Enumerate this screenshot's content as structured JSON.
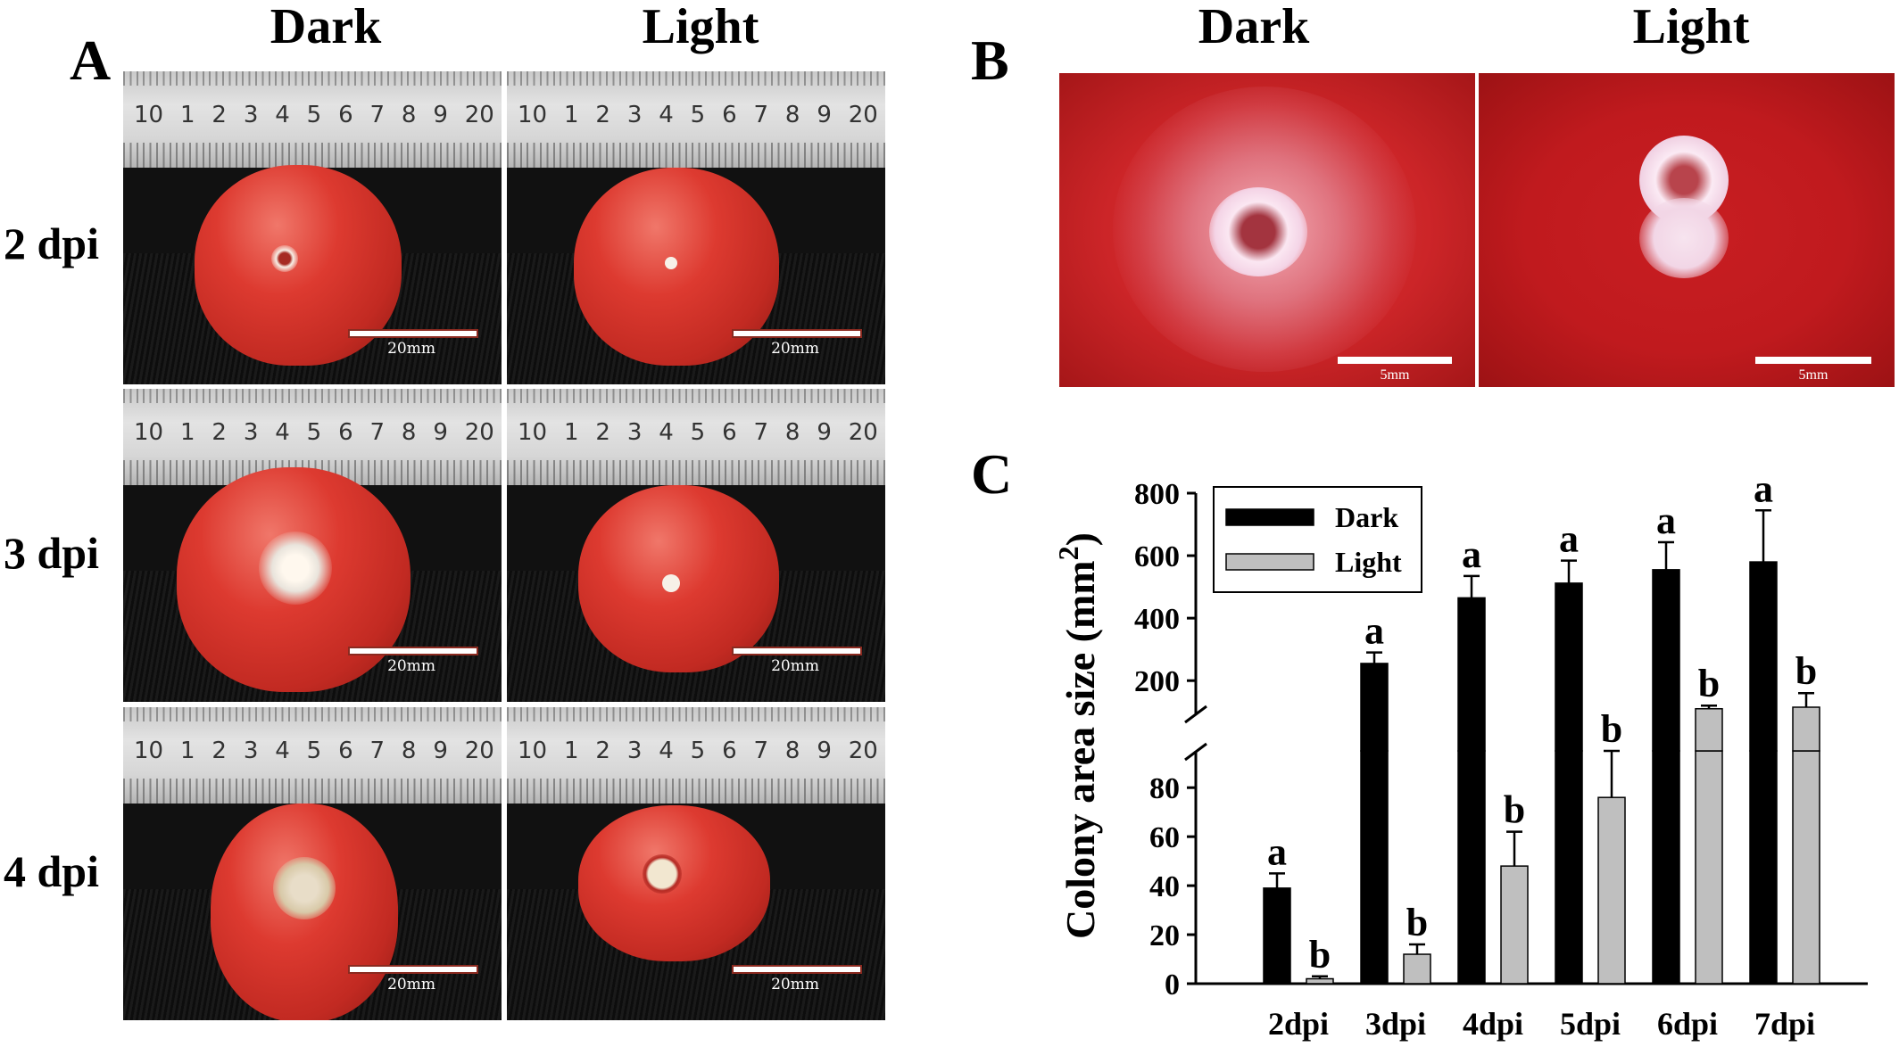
{
  "panelA": {
    "letter": "A",
    "col_dark": "Dark",
    "col_light": "Light",
    "rows": [
      {
        "label": "2 dpi"
      },
      {
        "label": "3 dpi"
      },
      {
        "label": "4 dpi"
      }
    ],
    "ruler_numbers": [
      "10",
      "1",
      "2",
      "3",
      "4",
      "5",
      "6",
      "7",
      "8",
      "9",
      "20"
    ],
    "scale_label": "20mm"
  },
  "panelB": {
    "letter": "B",
    "col_dark": "Dark",
    "col_light": "Light",
    "scale_label": "5mm"
  },
  "panelC": {
    "letter": "C",
    "chart_data": {
      "type": "bar",
      "ylabel": "Colony area size (mm²)",
      "ylabel_main": "Colony area size (mm",
      "ylabel_sup": "2",
      "ylabel_close": ")",
      "categories": [
        "2dpi",
        "3dpi",
        "4dpi",
        "5dpi",
        "6dpi",
        "7dpi"
      ],
      "series": [
        {
          "name": "Dark",
          "color": "#000000",
          "values": [
            39,
            255,
            465,
            512,
            555,
            580
          ],
          "errors": [
            6,
            35,
            70,
            72,
            88,
            165
          ],
          "letters": [
            "a",
            "a",
            "a",
            "a",
            "a",
            "a"
          ]
        },
        {
          "name": "Light",
          "color": "#bfbfbf",
          "values": [
            2,
            12,
            48,
            76,
            110,
            115
          ],
          "errors": [
            1,
            4,
            14,
            19,
            10,
            45
          ],
          "letters": [
            "b",
            "b",
            "b",
            "b",
            "b",
            "b"
          ]
        }
      ],
      "axis_break": true,
      "lower_yticks": [
        0,
        20,
        40,
        60,
        80
      ],
      "upper_yticks": [
        200,
        400,
        600,
        800
      ],
      "lower_ylim": [
        0,
        95
      ],
      "upper_ylim": [
        95,
        800
      ],
      "legend_position": "top-left"
    }
  }
}
